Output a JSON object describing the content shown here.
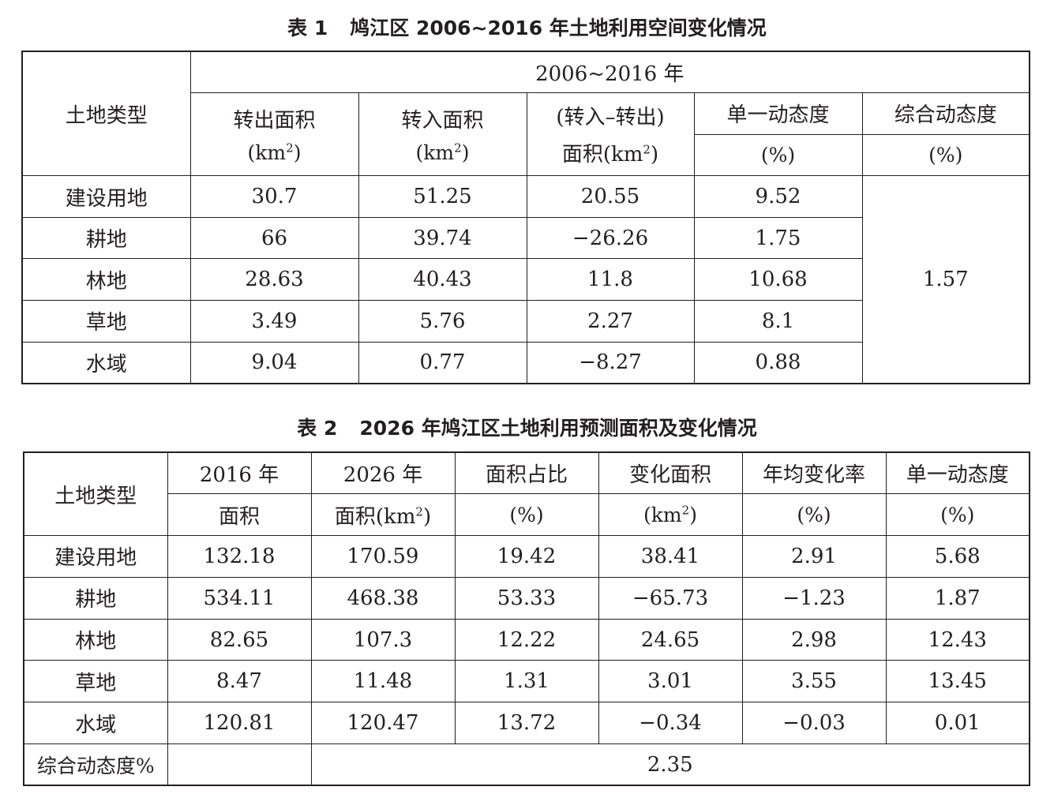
{
  "table1": {
    "caption_num": "表 1",
    "caption_text": "鸠江区 2006~2016 年土地利用空间变化情况",
    "header": {
      "land_type": "土地类型",
      "period": "2006~2016 年",
      "out_area": "转出面积",
      "out_unit": "(km²)",
      "in_area": "转入面积",
      "in_unit": "(km²)",
      "net_line1": "(转入–转出)",
      "net_line2": "面积(km²)",
      "single": "单一动态度",
      "single_unit": "(%)",
      "overall": "综合动态度",
      "overall_unit": "(%)"
    },
    "rows": [
      {
        "type": "建设用地",
        "out": "30.7",
        "in": "51.25",
        "net": "20.55",
        "single": "9.52"
      },
      {
        "type": "耕地",
        "out": "66",
        "in": "39.74",
        "net": "−26.26",
        "single": "1.75"
      },
      {
        "type": "林地",
        "out": "28.63",
        "in": "40.43",
        "net": "11.8",
        "single": "10.68"
      },
      {
        "type": "草地",
        "out": "3.49",
        "in": "5.76",
        "net": "2.27",
        "single": "8.1"
      },
      {
        "type": "水域",
        "out": "9.04",
        "in": "0.77",
        "net": "−8.27",
        "single": "0.88"
      }
    ],
    "overall_value": "1.57"
  },
  "table2": {
    "caption_num": "表 2",
    "caption_text": "2026 年鸠江区土地利用预测面积及变化情况",
    "header": {
      "land_type": "土地类型",
      "y2016_l1": "2016 年",
      "y2016_l2": "面积",
      "y2026_l1": "2026 年",
      "y2026_l2": "面积(km²)",
      "share_l1": "面积占比",
      "share_l2": "(%)",
      "change_l1": "变化面积",
      "change_l2": "(km²)",
      "rate_l1": "年均变化率",
      "rate_l2": "(%)",
      "single_l1": "单一动态度",
      "single_l2": "(%)"
    },
    "rows": [
      {
        "type": "建设用地",
        "a2016": "132.18",
        "a2026": "170.59",
        "share": "19.42",
        "change": "38.41",
        "rate": "2.91",
        "single": "5.68"
      },
      {
        "type": "耕地",
        "a2016": "534.11",
        "a2026": "468.38",
        "share": "53.33",
        "change": "−65.73",
        "rate": "−1.23",
        "single": "1.87"
      },
      {
        "type": "林地",
        "a2016": "82.65",
        "a2026": "107.3",
        "share": "12.22",
        "change": "24.65",
        "rate": "2.98",
        "single": "12.43"
      },
      {
        "type": "草地",
        "a2016": "8.47",
        "a2026": "11.48",
        "share": "1.31",
        "change": "3.01",
        "rate": "3.55",
        "single": "13.45"
      },
      {
        "type": "水域",
        "a2016": "120.81",
        "a2026": "120.47",
        "share": "13.72",
        "change": "−0.34",
        "rate": "−0.03",
        "single": "0.01"
      }
    ],
    "overall_label": "综合动态度%",
    "overall_value": "2.35"
  }
}
